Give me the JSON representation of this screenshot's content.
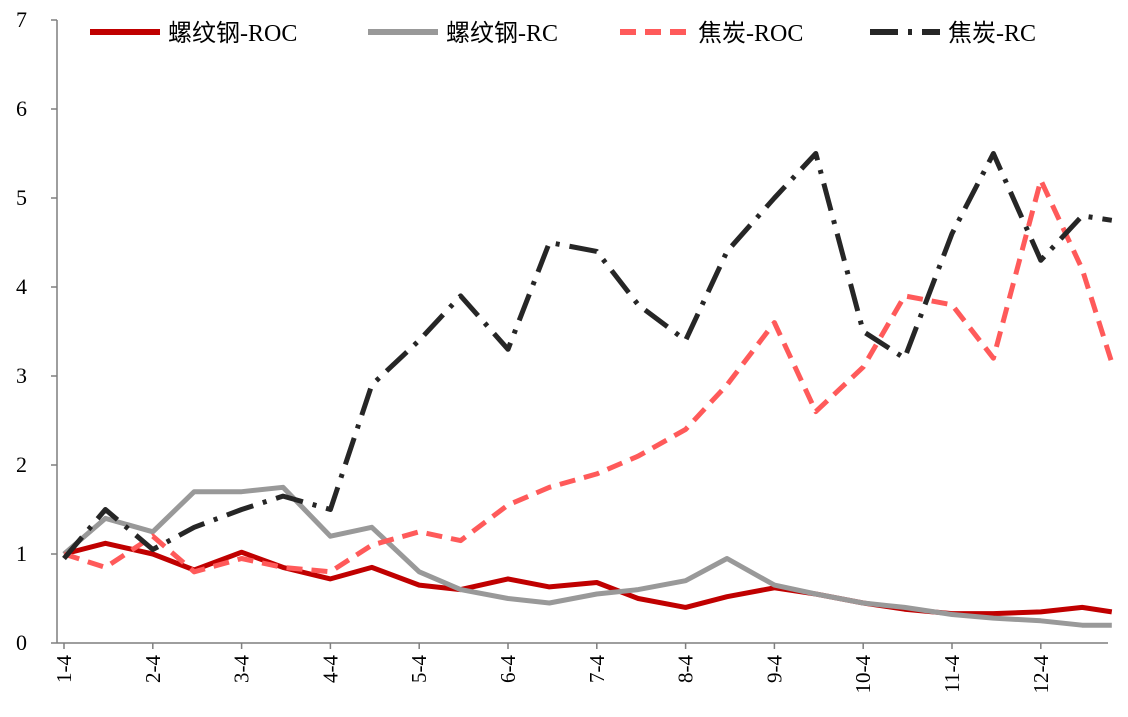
{
  "chart_data": {
    "type": "line",
    "title": "",
    "xlabel": "",
    "ylabel": "",
    "ylim": [
      0,
      7
    ],
    "yticks": [
      0,
      1,
      2,
      3,
      4,
      5,
      6,
      7
    ],
    "xtick_labels": [
      "1-4",
      "2-4",
      "3-4",
      "4-4",
      "5-4",
      "6-4",
      "7-4",
      "8-4",
      "9-4",
      "10-4",
      "11-4",
      "12-4"
    ],
    "grid": false,
    "legend_position": "top",
    "series": [
      {
        "name": "螺纹钢-ROC",
        "color": "#c00000",
        "style": "solid",
        "x": [
          "1-4",
          "1-18",
          "2-4",
          "2-18",
          "3-4",
          "3-18",
          "4-4",
          "4-18",
          "5-4",
          "5-18",
          "6-4",
          "6-18",
          "7-4",
          "7-18",
          "8-4",
          "8-18",
          "9-4",
          "9-18",
          "10-4",
          "10-18",
          "11-4",
          "11-18",
          "12-4",
          "12-18",
          "12-28"
        ],
        "values": [
          1.0,
          1.12,
          1.0,
          0.82,
          1.02,
          0.85,
          0.72,
          0.85,
          0.65,
          0.6,
          0.72,
          0.63,
          0.68,
          0.5,
          0.4,
          0.52,
          0.62,
          0.55,
          0.45,
          0.38,
          0.33,
          0.33,
          0.35,
          0.4,
          0.35
        ]
      },
      {
        "name": "螺纹钢-RC",
        "color": "#999999",
        "style": "solid",
        "x": [
          "1-4",
          "1-18",
          "2-4",
          "2-18",
          "3-4",
          "3-18",
          "4-4",
          "4-18",
          "5-4",
          "5-18",
          "6-4",
          "6-18",
          "7-4",
          "7-18",
          "8-4",
          "8-18",
          "9-4",
          "9-18",
          "10-4",
          "10-18",
          "11-4",
          "11-18",
          "12-4",
          "12-18",
          "12-28"
        ],
        "values": [
          1.0,
          1.4,
          1.25,
          1.7,
          1.7,
          1.75,
          1.2,
          1.3,
          0.8,
          0.6,
          0.5,
          0.45,
          0.55,
          0.6,
          0.7,
          0.95,
          0.65,
          0.55,
          0.45,
          0.4,
          0.32,
          0.28,
          0.25,
          0.2,
          0.2
        ]
      },
      {
        "name": "焦炭-ROC",
        "color": "#ff5a5a",
        "style": "dashed",
        "x": [
          "1-4",
          "1-18",
          "2-4",
          "2-18",
          "3-4",
          "3-18",
          "4-4",
          "4-18",
          "5-4",
          "5-18",
          "6-4",
          "6-18",
          "7-4",
          "7-18",
          "8-4",
          "8-18",
          "9-4",
          "9-18",
          "10-4",
          "10-18",
          "11-4",
          "11-18",
          "12-4",
          "12-18",
          "12-28"
        ],
        "values": [
          1.0,
          0.85,
          1.2,
          0.8,
          0.95,
          0.85,
          0.8,
          1.1,
          1.25,
          1.15,
          1.55,
          1.75,
          1.9,
          2.1,
          2.4,
          2.9,
          3.6,
          2.6,
          3.1,
          3.9,
          3.8,
          3.2,
          5.2,
          4.2,
          3.15
        ]
      },
      {
        "name": "焦炭-RC",
        "color": "#262626",
        "style": "dashdot",
        "x": [
          "1-4",
          "1-18",
          "2-4",
          "2-18",
          "3-4",
          "3-18",
          "4-4",
          "4-18",
          "5-4",
          "5-18",
          "6-4",
          "6-18",
          "7-4",
          "7-18",
          "8-4",
          "8-18",
          "9-4",
          "9-18",
          "10-4",
          "10-18",
          "11-4",
          "11-18",
          "12-4",
          "12-18",
          "12-28"
        ],
        "values": [
          0.95,
          1.5,
          1.05,
          1.3,
          1.5,
          1.65,
          1.5,
          2.9,
          3.4,
          3.9,
          3.3,
          4.5,
          4.4,
          3.8,
          3.4,
          4.4,
          5.0,
          5.5,
          3.5,
          3.2,
          4.6,
          5.5,
          4.3,
          4.8,
          4.75
        ]
      }
    ]
  }
}
